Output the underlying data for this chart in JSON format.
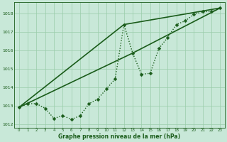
{
  "background_color": "#c8e8d8",
  "plot_bg_color": "#c8e8d8",
  "grid_color": "#99ccaa",
  "line_color": "#1a5c1a",
  "title": "Graphe pression niveau de la mer (hPa)",
  "xlabel": "Graphe pression niveau de la mer (hPa)",
  "ylim": [
    1011.8,
    1018.6
  ],
  "xlim": [
    -0.5,
    23.5
  ],
  "yticks": [
    1012,
    1013,
    1014,
    1015,
    1016,
    1017,
    1018
  ],
  "xticks": [
    0,
    1,
    2,
    3,
    4,
    5,
    6,
    7,
    8,
    9,
    10,
    11,
    12,
    13,
    14,
    15,
    16,
    17,
    18,
    19,
    20,
    21,
    22,
    23
  ],
  "series1_x": [
    0,
    1,
    2,
    3,
    4,
    5,
    6,
    7,
    8,
    9,
    10,
    11,
    12,
    13,
    14,
    15,
    16,
    17,
    18,
    19,
    20,
    21,
    22,
    23
  ],
  "series1_y": [
    1012.9,
    1013.1,
    1013.1,
    1012.85,
    1012.3,
    1012.45,
    1012.25,
    1012.45,
    1013.1,
    1013.35,
    1013.9,
    1014.45,
    1017.4,
    1015.85,
    1014.7,
    1014.75,
    1016.1,
    1016.7,
    1017.4,
    1017.6,
    1017.95,
    1018.1,
    1018.1,
    1018.3
  ],
  "series2_x": [
    0,
    12,
    23
  ],
  "series2_y": [
    1012.9,
    1017.4,
    1018.3
  ],
  "series3_x": [
    0,
    13,
    23
  ],
  "series3_y": [
    1012.9,
    1015.85,
    1018.3
  ],
  "marker_size": 2.5,
  "linewidth": 1.0,
  "solid_linewidth": 1.2
}
